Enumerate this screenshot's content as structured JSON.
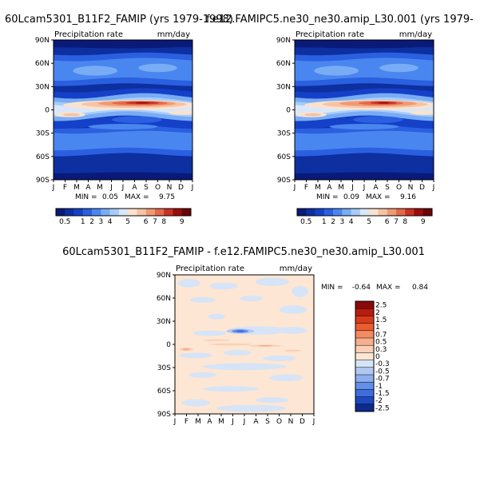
{
  "chart_data": [
    {
      "type": "heatmap",
      "title": "60Lcam5301_B11F2_FAMIP (yrs 1979-1998)",
      "variable": "Precipitation rate",
      "units": "mm/day",
      "x_ticks": [
        "J",
        "F",
        "M",
        "A",
        "M",
        "J",
        "J",
        "A",
        "S",
        "O",
        "N",
        "D",
        "J"
      ],
      "y_ticks": [
        "90N",
        "60N",
        "30N",
        "0",
        "30S",
        "60S",
        "90S"
      ],
      "min_label": "MIN =",
      "min_value": "0.05",
      "max_label": "MAX =",
      "max_value": "9.75",
      "colorbar_labels": [
        "0.5",
        "1",
        "2",
        "3",
        "4",
        "5",
        "6",
        "7",
        "8",
        "9"
      ]
    },
    {
      "type": "heatmap",
      "title": "f.e12.FAMIPC5.ne30_ne30.amip_L30.001 (yrs 1979-",
      "variable": "Precipitation rate",
      "units": "mm/day",
      "x_ticks": [
        "J",
        "F",
        "M",
        "A",
        "M",
        "J",
        "J",
        "A",
        "S",
        "O",
        "N",
        "D",
        "J"
      ],
      "y_ticks": [
        "90N",
        "60N",
        "30N",
        "0",
        "30S",
        "60S",
        "90S"
      ],
      "min_label": "MIN =",
      "min_value": "0.09",
      "max_label": "MAX =",
      "max_value": "9.16",
      "colorbar_labels": [
        "0.5",
        "1",
        "2",
        "3",
        "4",
        "5",
        "6",
        "7",
        "8",
        "9"
      ]
    },
    {
      "type": "heatmap",
      "title": "60Lcam5301_B11F2_FAMIP - f.e12.FAMIPC5.ne30_ne30.amip_L30.001",
      "variable": "Precipitation rate",
      "units": "mm/day",
      "x_ticks": [
        "J",
        "F",
        "M",
        "A",
        "M",
        "J",
        "J",
        "A",
        "S",
        "O",
        "N",
        "D",
        "J"
      ],
      "y_ticks": [
        "90N",
        "60N",
        "30N",
        "0",
        "30S",
        "60S",
        "90S"
      ],
      "min_label": "MIN =",
      "min_value": "-0.64",
      "max_label": "MAX =",
      "max_value": "0.84",
      "colorbar_labels": [
        "2.5",
        "2",
        "1.5",
        "1",
        "0.7",
        "0.5",
        "0.3",
        "0",
        "-0.3",
        "-0.5",
        "-0.7",
        "-1",
        "-1.5",
        "-2",
        "-2.5"
      ]
    }
  ],
  "colors": {
    "mean_palette": [
      "#0a1a78",
      "#0d2fa0",
      "#1540c8",
      "#2a60e0",
      "#4a86ef",
      "#78acf5",
      "#a8ccf8",
      "#d8e8fa",
      "#fbe2cf",
      "#f6c3a4",
      "#f09a74",
      "#e4684a",
      "#c83224",
      "#9a0d0d",
      "#6a0505"
    ],
    "diff_palette": [
      "#8a0a0a",
      "#b81c10",
      "#d83a1a",
      "#ea5c32",
      "#f28a62",
      "#f7ae8c",
      "#fbd0b6",
      "#fde6d4",
      "#d6e4f7",
      "#b0c9f2",
      "#8cadee",
      "#648fe8",
      "#3e6ddc",
      "#1e48c0",
      "#0d2a8c"
    ],
    "diff_background": "#fde6d4"
  }
}
